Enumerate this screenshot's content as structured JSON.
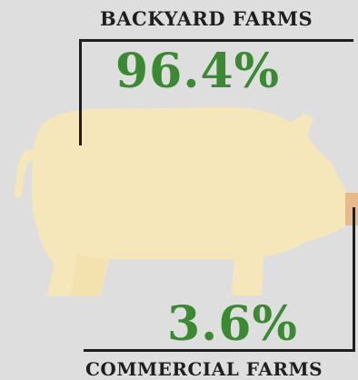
{
  "infographic": {
    "top_label": "BACKYARD FARMS",
    "top_value": "96.4%",
    "bottom_value": "3.6%",
    "bottom_label": "COMMERCIAL FARMS"
  },
  "chart_data": {
    "type": "pie",
    "categories": [
      "BACKYARD FARMS",
      "COMMERCIAL FARMS"
    ],
    "values": [
      96.4,
      3.6
    ],
    "title": ""
  },
  "colors": {
    "background": "#dedede",
    "pig_body": "#f6e7bb",
    "pig_highlight": "#e8b98a",
    "percentage_text": "#3a8a31",
    "label_text": "#1f1f1f"
  },
  "icons": {
    "pig": "pig-silhouette-icon"
  }
}
